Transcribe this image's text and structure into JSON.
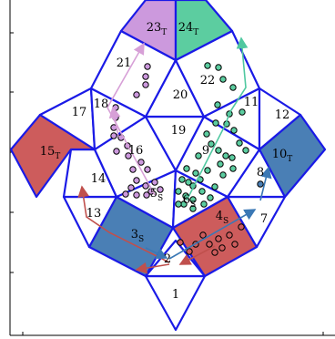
{
  "colors": {
    "edge": "#1a1ae6",
    "source": "#4a7fb5",
    "target_red": "#cd5c5c",
    "target_green": "#5ccda0",
    "pink": "#cc99dd",
    "arrow_red": "#c0504d",
    "arrow_blue": "#3a78b5",
    "arrow_green": "#50c8a0",
    "arrow_pink": "#d7a0d7"
  },
  "cells": [
    {
      "id": "1",
      "label": "1",
      "sub": ""
    },
    {
      "id": "2",
      "label": "2",
      "sub": ""
    },
    {
      "id": "3",
      "label": "3",
      "sub": "S"
    },
    {
      "id": "4",
      "label": "4",
      "sub": "S"
    },
    {
      "id": "5",
      "label": "5",
      "sub": "S"
    },
    {
      "id": "6",
      "label": "6",
      "sub": "S"
    },
    {
      "id": "7",
      "label": "7",
      "sub": ""
    },
    {
      "id": "8",
      "label": "8",
      "sub": ""
    },
    {
      "id": "9",
      "label": "9",
      "sub": ""
    },
    {
      "id": "10",
      "label": "10",
      "sub": "T"
    },
    {
      "id": "11",
      "label": "11",
      "sub": ""
    },
    {
      "id": "12",
      "label": "12",
      "sub": ""
    },
    {
      "id": "13",
      "label": "13",
      "sub": ""
    },
    {
      "id": "14",
      "label": "14",
      "sub": ""
    },
    {
      "id": "15",
      "label": "15",
      "sub": "T"
    },
    {
      "id": "16",
      "label": "16",
      "sub": ""
    },
    {
      "id": "17",
      "label": "17",
      "sub": ""
    },
    {
      "id": "18",
      "label": "18",
      "sub": ""
    },
    {
      "id": "19",
      "label": "19",
      "sub": ""
    },
    {
      "id": "20",
      "label": "20",
      "sub": ""
    },
    {
      "id": "21",
      "label": "21",
      "sub": ""
    },
    {
      "id": "22",
      "label": "22",
      "sub": ""
    },
    {
      "id": "23",
      "label": "23",
      "sub": "T"
    },
    {
      "id": "24",
      "label": "24",
      "sub": "T"
    }
  ]
}
